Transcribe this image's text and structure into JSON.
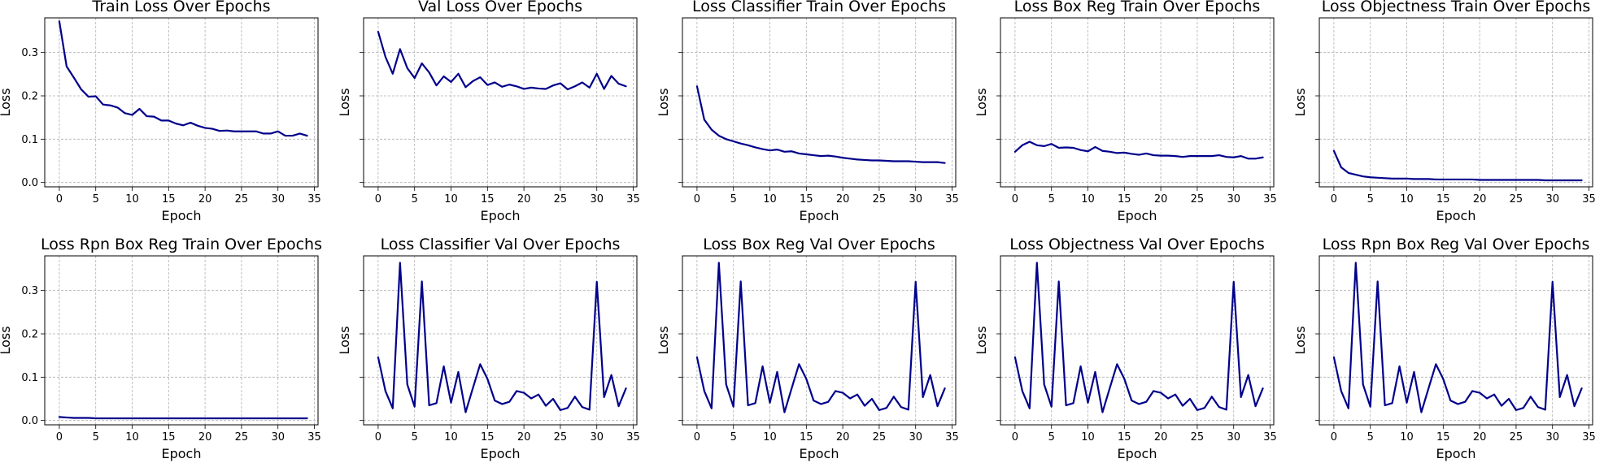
{
  "figure": {
    "line_color": "#00008b",
    "grid_color": "#b0b0b0",
    "grid": true,
    "shared_y_axis": true
  },
  "chart_data": [
    {
      "type": "line",
      "title": "Train Loss Over Epochs",
      "xlabel": "Epoch",
      "ylabel": "Loss",
      "xlim": [
        -2,
        35.5
      ],
      "ylim": [
        -0.01,
        0.38
      ],
      "xticks": [
        0,
        5,
        10,
        15,
        20,
        25,
        30,
        35
      ],
      "yticks": [
        0.0,
        0.1,
        0.2,
        0.3
      ],
      "ytick_labels": [
        "0.0",
        "0.1",
        "0.2",
        "0.3"
      ],
      "show_y_tick_labels": true,
      "x": [
        0,
        1,
        2,
        3,
        4,
        5,
        6,
        7,
        8,
        9,
        10,
        11,
        12,
        13,
        14,
        15,
        16,
        17,
        18,
        19,
        20,
        21,
        22,
        23,
        24,
        25,
        26,
        27,
        28,
        29,
        30,
        31,
        32,
        33,
        34
      ],
      "values": [
        0.372,
        0.268,
        0.242,
        0.215,
        0.198,
        0.199,
        0.18,
        0.178,
        0.173,
        0.16,
        0.156,
        0.17,
        0.153,
        0.152,
        0.143,
        0.143,
        0.136,
        0.132,
        0.138,
        0.131,
        0.126,
        0.124,
        0.119,
        0.12,
        0.118,
        0.118,
        0.118,
        0.118,
        0.113,
        0.113,
        0.118,
        0.108,
        0.108,
        0.113,
        0.108
      ]
    },
    {
      "type": "line",
      "title": "Val Loss Over Epochs",
      "xlabel": "Epoch",
      "ylabel": "Loss",
      "xlim": [
        -2,
        35.5
      ],
      "ylim": [
        -0.01,
        0.38
      ],
      "xticks": [
        0,
        5,
        10,
        15,
        20,
        25,
        30,
        35
      ],
      "yticks": [
        0.0,
        0.1,
        0.2,
        0.3
      ],
      "show_y_tick_labels": false,
      "x": [
        0,
        1,
        2,
        3,
        4,
        5,
        6,
        7,
        8,
        9,
        10,
        11,
        12,
        13,
        14,
        15,
        16,
        17,
        18,
        19,
        20,
        21,
        22,
        23,
        24,
        25,
        26,
        27,
        28,
        29,
        30,
        31,
        32,
        33,
        34
      ],
      "values": [
        0.348,
        0.29,
        0.251,
        0.308,
        0.264,
        0.241,
        0.275,
        0.254,
        0.224,
        0.245,
        0.232,
        0.251,
        0.22,
        0.234,
        0.243,
        0.225,
        0.231,
        0.221,
        0.226,
        0.222,
        0.216,
        0.219,
        0.217,
        0.216,
        0.224,
        0.229,
        0.215,
        0.222,
        0.231,
        0.219,
        0.251,
        0.216,
        0.246,
        0.228,
        0.222
      ]
    },
    {
      "type": "line",
      "title": "Loss Classifier Train Over Epochs",
      "xlabel": "Epoch",
      "ylabel": "Loss",
      "xlim": [
        -2,
        35.5
      ],
      "ylim": [
        -0.01,
        0.38
      ],
      "xticks": [
        0,
        5,
        10,
        15,
        20,
        25,
        30,
        35
      ],
      "yticks": [
        0.0,
        0.1,
        0.2,
        0.3
      ],
      "show_y_tick_labels": false,
      "x": [
        0,
        1,
        2,
        3,
        4,
        5,
        6,
        7,
        8,
        9,
        10,
        11,
        12,
        13,
        14,
        15,
        16,
        17,
        18,
        19,
        20,
        21,
        22,
        23,
        24,
        25,
        26,
        27,
        28,
        29,
        30,
        31,
        32,
        33,
        34
      ],
      "values": [
        0.222,
        0.145,
        0.122,
        0.108,
        0.1,
        0.095,
        0.09,
        0.086,
        0.081,
        0.077,
        0.074,
        0.076,
        0.071,
        0.072,
        0.067,
        0.065,
        0.063,
        0.061,
        0.062,
        0.06,
        0.057,
        0.055,
        0.053,
        0.052,
        0.051,
        0.051,
        0.05,
        0.049,
        0.049,
        0.049,
        0.048,
        0.047,
        0.047,
        0.047,
        0.045
      ]
    },
    {
      "type": "line",
      "title": "Loss Box Reg Train Over Epochs",
      "xlabel": "Epoch",
      "ylabel": "Loss",
      "xlim": [
        -2,
        35.5
      ],
      "ylim": [
        -0.01,
        0.38
      ],
      "xticks": [
        0,
        5,
        10,
        15,
        20,
        25,
        30,
        35
      ],
      "yticks": [
        0.0,
        0.1,
        0.2,
        0.3
      ],
      "show_y_tick_labels": false,
      "x": [
        0,
        1,
        2,
        3,
        4,
        5,
        6,
        7,
        8,
        9,
        10,
        11,
        12,
        13,
        14,
        15,
        16,
        17,
        18,
        19,
        20,
        21,
        22,
        23,
        24,
        25,
        26,
        27,
        28,
        29,
        30,
        31,
        32,
        33,
        34
      ],
      "values": [
        0.071,
        0.086,
        0.094,
        0.086,
        0.084,
        0.089,
        0.08,
        0.081,
        0.08,
        0.075,
        0.072,
        0.082,
        0.073,
        0.071,
        0.068,
        0.069,
        0.066,
        0.064,
        0.067,
        0.063,
        0.062,
        0.062,
        0.061,
        0.059,
        0.061,
        0.061,
        0.061,
        0.061,
        0.063,
        0.059,
        0.058,
        0.061,
        0.055,
        0.055,
        0.058
      ]
    },
    {
      "type": "line",
      "title": "Loss Objectness Train Over Epochs",
      "xlabel": "Epoch",
      "ylabel": "Loss",
      "xlim": [
        -2,
        35.5
      ],
      "ylim": [
        -0.01,
        0.38
      ],
      "xticks": [
        0,
        5,
        10,
        15,
        20,
        25,
        30,
        35
      ],
      "yticks": [
        0.0,
        0.1,
        0.2,
        0.3
      ],
      "show_y_tick_labels": false,
      "x": [
        0,
        1,
        2,
        3,
        4,
        5,
        6,
        7,
        8,
        9,
        10,
        11,
        12,
        13,
        14,
        15,
        16,
        17,
        18,
        19,
        20,
        21,
        22,
        23,
        24,
        25,
        26,
        27,
        28,
        29,
        30,
        31,
        32,
        33,
        34
      ],
      "values": [
        0.073,
        0.035,
        0.022,
        0.018,
        0.014,
        0.012,
        0.011,
        0.01,
        0.009,
        0.009,
        0.009,
        0.008,
        0.008,
        0.008,
        0.007,
        0.007,
        0.007,
        0.007,
        0.007,
        0.007,
        0.006,
        0.006,
        0.006,
        0.006,
        0.006,
        0.006,
        0.006,
        0.006,
        0.006,
        0.005,
        0.005,
        0.005,
        0.005,
        0.005,
        0.005
      ]
    },
    {
      "type": "line",
      "title": "Loss Rpn Box Reg Train Over Epochs",
      "xlabel": "Epoch",
      "ylabel": "Loss",
      "xlim": [
        -2,
        35.5
      ],
      "ylim": [
        -0.01,
        0.38
      ],
      "xticks": [
        0,
        5,
        10,
        15,
        20,
        25,
        30,
        35
      ],
      "yticks": [
        0.0,
        0.1,
        0.2,
        0.3
      ],
      "ytick_labels": [
        "0.0",
        "0.1",
        "0.2",
        "0.3"
      ],
      "show_y_tick_labels": true,
      "x": [
        0,
        1,
        2,
        3,
        4,
        5,
        6,
        7,
        8,
        9,
        10,
        11,
        12,
        13,
        14,
        15,
        16,
        17,
        18,
        19,
        20,
        21,
        22,
        23,
        24,
        25,
        26,
        27,
        28,
        29,
        30,
        31,
        32,
        33,
        34
      ],
      "values": [
        0.008,
        0.007,
        0.006,
        0.006,
        0.006,
        0.005,
        0.005,
        0.005,
        0.005,
        0.005,
        0.005,
        0.005,
        0.005,
        0.005,
        0.005,
        0.005,
        0.005,
        0.005,
        0.005,
        0.005,
        0.005,
        0.005,
        0.005,
        0.005,
        0.005,
        0.005,
        0.005,
        0.005,
        0.005,
        0.005,
        0.005,
        0.005,
        0.005,
        0.005,
        0.005
      ]
    },
    {
      "type": "line",
      "title": "Loss Classifier Val Over Epochs",
      "xlabel": "Epoch",
      "ylabel": "Loss",
      "xlim": [
        -2,
        35.5
      ],
      "ylim": [
        -0.01,
        0.38
      ],
      "xticks": [
        0,
        5,
        10,
        15,
        20,
        25,
        30,
        35
      ],
      "yticks": [
        0.0,
        0.1,
        0.2,
        0.3
      ],
      "show_y_tick_labels": false,
      "x": [
        0,
        1,
        2,
        3,
        4,
        5,
        6,
        7,
        8,
        9,
        10,
        11,
        12,
        13,
        14,
        15,
        16,
        17,
        18,
        19,
        20,
        21,
        22,
        23,
        24,
        25,
        26,
        27,
        28,
        29,
        30,
        31,
        32,
        33,
        34
      ],
      "values": [
        0.146,
        0.068,
        0.028,
        0.364,
        0.083,
        0.032,
        0.321,
        0.035,
        0.04,
        0.125,
        0.041,
        0.112,
        0.019,
        0.075,
        0.13,
        0.096,
        0.046,
        0.038,
        0.043,
        0.068,
        0.064,
        0.051,
        0.06,
        0.034,
        0.05,
        0.024,
        0.029,
        0.055,
        0.031,
        0.025,
        0.32,
        0.054,
        0.105,
        0.033,
        0.074
      ]
    },
    {
      "type": "line",
      "title": "Loss Box Reg Val Over Epochs",
      "xlabel": "Epoch",
      "ylabel": "Loss",
      "xlim": [
        -2,
        35.5
      ],
      "ylim": [
        -0.01,
        0.38
      ],
      "xticks": [
        0,
        5,
        10,
        15,
        20,
        25,
        30,
        35
      ],
      "yticks": [
        0.0,
        0.1,
        0.2,
        0.3
      ],
      "show_y_tick_labels": false,
      "x": [
        0,
        1,
        2,
        3,
        4,
        5,
        6,
        7,
        8,
        9,
        10,
        11,
        12,
        13,
        14,
        15,
        16,
        17,
        18,
        19,
        20,
        21,
        22,
        23,
        24,
        25,
        26,
        27,
        28,
        29,
        30,
        31,
        32,
        33,
        34
      ],
      "values": [
        0.146,
        0.068,
        0.028,
        0.364,
        0.083,
        0.032,
        0.321,
        0.035,
        0.04,
        0.125,
        0.041,
        0.112,
        0.019,
        0.075,
        0.13,
        0.096,
        0.046,
        0.038,
        0.043,
        0.068,
        0.064,
        0.051,
        0.06,
        0.034,
        0.05,
        0.024,
        0.029,
        0.055,
        0.031,
        0.025,
        0.32,
        0.054,
        0.105,
        0.033,
        0.074
      ]
    },
    {
      "type": "line",
      "title": "Loss Objectness Val Over Epochs",
      "xlabel": "Epoch",
      "ylabel": "Loss",
      "xlim": [
        -2,
        35.5
      ],
      "ylim": [
        -0.01,
        0.38
      ],
      "xticks": [
        0,
        5,
        10,
        15,
        20,
        25,
        30,
        35
      ],
      "yticks": [
        0.0,
        0.1,
        0.2,
        0.3
      ],
      "show_y_tick_labels": false,
      "x": [
        0,
        1,
        2,
        3,
        4,
        5,
        6,
        7,
        8,
        9,
        10,
        11,
        12,
        13,
        14,
        15,
        16,
        17,
        18,
        19,
        20,
        21,
        22,
        23,
        24,
        25,
        26,
        27,
        28,
        29,
        30,
        31,
        32,
        33,
        34
      ],
      "values": [
        0.146,
        0.068,
        0.028,
        0.364,
        0.083,
        0.032,
        0.321,
        0.035,
        0.04,
        0.125,
        0.041,
        0.112,
        0.019,
        0.075,
        0.13,
        0.096,
        0.046,
        0.038,
        0.043,
        0.068,
        0.064,
        0.051,
        0.06,
        0.034,
        0.05,
        0.024,
        0.029,
        0.055,
        0.031,
        0.025,
        0.32,
        0.054,
        0.105,
        0.033,
        0.074
      ]
    },
    {
      "type": "line",
      "title": "Loss Rpn Box Reg Val Over Epochs",
      "xlabel": "Epoch",
      "ylabel": "Loss",
      "xlim": [
        -2,
        35.5
      ],
      "ylim": [
        -0.01,
        0.38
      ],
      "xticks": [
        0,
        5,
        10,
        15,
        20,
        25,
        30,
        35
      ],
      "yticks": [
        0.0,
        0.1,
        0.2,
        0.3
      ],
      "show_y_tick_labels": false,
      "x": [
        0,
        1,
        2,
        3,
        4,
        5,
        6,
        7,
        8,
        9,
        10,
        11,
        12,
        13,
        14,
        15,
        16,
        17,
        18,
        19,
        20,
        21,
        22,
        23,
        24,
        25,
        26,
        27,
        28,
        29,
        30,
        31,
        32,
        33,
        34
      ],
      "values": [
        0.146,
        0.068,
        0.028,
        0.364,
        0.083,
        0.032,
        0.321,
        0.035,
        0.04,
        0.125,
        0.041,
        0.112,
        0.019,
        0.075,
        0.13,
        0.096,
        0.046,
        0.038,
        0.043,
        0.068,
        0.064,
        0.051,
        0.06,
        0.034,
        0.05,
        0.024,
        0.029,
        0.055,
        0.031,
        0.025,
        0.32,
        0.054,
        0.105,
        0.033,
        0.074
      ]
    }
  ]
}
